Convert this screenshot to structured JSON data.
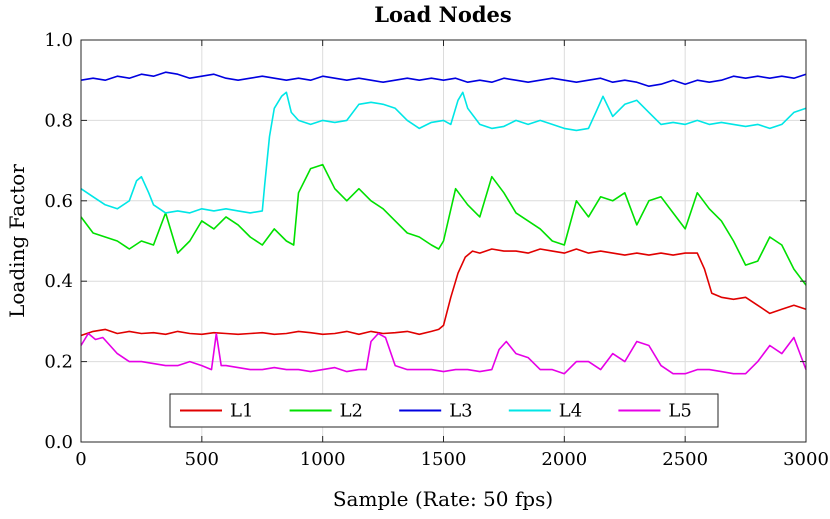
{
  "chart_data": {
    "type": "line",
    "title": "Load Nodes",
    "xlabel": "Sample (Rate:  50 fps)",
    "ylabel": "Loading Factor",
    "xlim": [
      0,
      3000
    ],
    "ylim": [
      0,
      1
    ],
    "xticks": [
      0,
      500,
      1000,
      1500,
      2000,
      2500,
      3000
    ],
    "xtick_labels": [
      "0",
      "500",
      "1000",
      "1500",
      "2000",
      "2500",
      "3000"
    ],
    "yticks": [
      0,
      0.2,
      0.4,
      0.6,
      0.8,
      1.0
    ],
    "ytick_labels": [
      "0.0",
      "0.2",
      "0.4",
      "0.6",
      "0.8",
      "1.0"
    ],
    "grid": true,
    "legend": {
      "placement": "bottom-center",
      "orientation": "horizontal"
    },
    "series": [
      {
        "name": "L1",
        "color": "#e00000",
        "x": [
          0,
          50,
          100,
          150,
          200,
          250,
          300,
          350,
          400,
          450,
          500,
          550,
          600,
          650,
          700,
          750,
          800,
          850,
          900,
          950,
          1000,
          1050,
          1100,
          1150,
          1200,
          1250,
          1300,
          1350,
          1400,
          1450,
          1480,
          1500,
          1530,
          1560,
          1590,
          1620,
          1650,
          1700,
          1750,
          1800,
          1850,
          1900,
          1950,
          2000,
          2050,
          2100,
          2150,
          2200,
          2250,
          2300,
          2350,
          2400,
          2450,
          2500,
          2550,
          2580,
          2610,
          2650,
          2700,
          2750,
          2800,
          2850,
          2900,
          2950,
          3000
        ],
        "y": [
          0.265,
          0.275,
          0.28,
          0.27,
          0.275,
          0.27,
          0.272,
          0.268,
          0.275,
          0.27,
          0.268,
          0.272,
          0.27,
          0.268,
          0.27,
          0.272,
          0.268,
          0.27,
          0.275,
          0.272,
          0.268,
          0.27,
          0.275,
          0.268,
          0.275,
          0.27,
          0.272,
          0.275,
          0.268,
          0.275,
          0.28,
          0.29,
          0.36,
          0.42,
          0.46,
          0.475,
          0.47,
          0.48,
          0.475,
          0.475,
          0.47,
          0.48,
          0.475,
          0.47,
          0.48,
          0.47,
          0.475,
          0.47,
          0.465,
          0.47,
          0.465,
          0.47,
          0.465,
          0.47,
          0.47,
          0.43,
          0.37,
          0.36,
          0.355,
          0.36,
          0.34,
          0.32,
          0.33,
          0.34,
          0.33
        ]
      },
      {
        "name": "L2",
        "color": "#00e000",
        "x": [
          0,
          50,
          100,
          150,
          200,
          250,
          300,
          350,
          400,
          450,
          500,
          550,
          600,
          650,
          700,
          750,
          800,
          850,
          880,
          900,
          950,
          1000,
          1050,
          1100,
          1150,
          1200,
          1250,
          1300,
          1350,
          1400,
          1450,
          1480,
          1500,
          1550,
          1600,
          1650,
          1700,
          1750,
          1800,
          1850,
          1900,
          1950,
          2000,
          2050,
          2100,
          2150,
          2200,
          2250,
          2300,
          2350,
          2400,
          2450,
          2500,
          2550,
          2600,
          2650,
          2700,
          2750,
          2800,
          2850,
          2900,
          2950,
          3000
        ],
        "y": [
          0.56,
          0.52,
          0.51,
          0.5,
          0.48,
          0.5,
          0.49,
          0.57,
          0.47,
          0.5,
          0.55,
          0.53,
          0.56,
          0.54,
          0.51,
          0.49,
          0.53,
          0.5,
          0.49,
          0.62,
          0.68,
          0.69,
          0.63,
          0.6,
          0.63,
          0.6,
          0.58,
          0.55,
          0.52,
          0.51,
          0.49,
          0.48,
          0.5,
          0.63,
          0.59,
          0.56,
          0.66,
          0.62,
          0.57,
          0.55,
          0.53,
          0.5,
          0.49,
          0.6,
          0.56,
          0.61,
          0.6,
          0.62,
          0.54,
          0.6,
          0.61,
          0.57,
          0.53,
          0.62,
          0.58,
          0.55,
          0.5,
          0.44,
          0.45,
          0.51,
          0.49,
          0.43,
          0.39
        ]
      },
      {
        "name": "L3",
        "color": "#0000e0",
        "x": [
          0,
          50,
          100,
          150,
          200,
          250,
          300,
          350,
          400,
          450,
          500,
          550,
          600,
          650,
          700,
          750,
          800,
          850,
          900,
          950,
          1000,
          1050,
          1100,
          1150,
          1200,
          1250,
          1300,
          1350,
          1400,
          1450,
          1500,
          1550,
          1600,
          1650,
          1700,
          1750,
          1800,
          1850,
          1900,
          1950,
          2000,
          2050,
          2100,
          2150,
          2200,
          2250,
          2300,
          2350,
          2400,
          2450,
          2500,
          2550,
          2600,
          2650,
          2700,
          2750,
          2800,
          2850,
          2900,
          2950,
          3000
        ],
        "y": [
          0.9,
          0.905,
          0.9,
          0.91,
          0.905,
          0.915,
          0.91,
          0.92,
          0.915,
          0.905,
          0.91,
          0.915,
          0.905,
          0.9,
          0.905,
          0.91,
          0.905,
          0.9,
          0.905,
          0.9,
          0.91,
          0.905,
          0.9,
          0.905,
          0.9,
          0.895,
          0.9,
          0.905,
          0.9,
          0.905,
          0.9,
          0.905,
          0.895,
          0.9,
          0.895,
          0.905,
          0.9,
          0.895,
          0.9,
          0.905,
          0.9,
          0.895,
          0.9,
          0.905,
          0.895,
          0.9,
          0.895,
          0.885,
          0.89,
          0.9,
          0.89,
          0.9,
          0.895,
          0.9,
          0.91,
          0.905,
          0.91,
          0.905,
          0.91,
          0.905,
          0.915
        ]
      },
      {
        "name": "L4",
        "color": "#00e6e6",
        "x": [
          0,
          50,
          100,
          150,
          200,
          230,
          250,
          280,
          300,
          350,
          400,
          450,
          500,
          550,
          600,
          650,
          700,
          750,
          760,
          780,
          800,
          830,
          850,
          870,
          900,
          950,
          1000,
          1050,
          1100,
          1150,
          1200,
          1250,
          1300,
          1350,
          1400,
          1450,
          1500,
          1530,
          1560,
          1580,
          1600,
          1650,
          1700,
          1750,
          1800,
          1850,
          1900,
          1950,
          2000,
          2050,
          2100,
          2130,
          2160,
          2200,
          2250,
          2300,
          2350,
          2400,
          2450,
          2500,
          2550,
          2600,
          2650,
          2700,
          2750,
          2800,
          2850,
          2900,
          2950,
          3000
        ],
        "y": [
          0.63,
          0.61,
          0.59,
          0.58,
          0.6,
          0.65,
          0.66,
          0.62,
          0.59,
          0.57,
          0.575,
          0.57,
          0.58,
          0.575,
          0.58,
          0.575,
          0.57,
          0.575,
          0.64,
          0.76,
          0.83,
          0.86,
          0.87,
          0.82,
          0.8,
          0.79,
          0.8,
          0.795,
          0.8,
          0.84,
          0.845,
          0.84,
          0.83,
          0.8,
          0.78,
          0.795,
          0.8,
          0.79,
          0.85,
          0.87,
          0.83,
          0.79,
          0.78,
          0.785,
          0.8,
          0.79,
          0.8,
          0.79,
          0.78,
          0.775,
          0.78,
          0.82,
          0.86,
          0.81,
          0.84,
          0.85,
          0.82,
          0.79,
          0.795,
          0.79,
          0.8,
          0.79,
          0.795,
          0.79,
          0.785,
          0.79,
          0.78,
          0.79,
          0.82,
          0.83
        ]
      },
      {
        "name": "L5",
        "color": "#e600e6",
        "x": [
          0,
          30,
          60,
          90,
          120,
          150,
          200,
          250,
          300,
          350,
          400,
          450,
          500,
          540,
          560,
          580,
          600,
          650,
          700,
          750,
          800,
          850,
          900,
          950,
          1000,
          1050,
          1100,
          1150,
          1180,
          1200,
          1230,
          1260,
          1300,
          1350,
          1400,
          1450,
          1500,
          1550,
          1600,
          1650,
          1700,
          1730,
          1760,
          1800,
          1850,
          1900,
          1950,
          2000,
          2050,
          2100,
          2150,
          2200,
          2250,
          2300,
          2350,
          2400,
          2450,
          2500,
          2550,
          2600,
          2650,
          2700,
          2750,
          2800,
          2850,
          2900,
          2950,
          3000
        ],
        "y": [
          0.24,
          0.27,
          0.255,
          0.26,
          0.24,
          0.22,
          0.2,
          0.2,
          0.195,
          0.19,
          0.19,
          0.2,
          0.19,
          0.18,
          0.27,
          0.19,
          0.19,
          0.185,
          0.18,
          0.18,
          0.185,
          0.18,
          0.18,
          0.175,
          0.18,
          0.185,
          0.175,
          0.18,
          0.18,
          0.25,
          0.27,
          0.26,
          0.19,
          0.18,
          0.18,
          0.18,
          0.175,
          0.18,
          0.18,
          0.175,
          0.18,
          0.23,
          0.25,
          0.22,
          0.21,
          0.18,
          0.18,
          0.17,
          0.2,
          0.2,
          0.18,
          0.22,
          0.2,
          0.25,
          0.24,
          0.19,
          0.17,
          0.17,
          0.18,
          0.18,
          0.175,
          0.17,
          0.17,
          0.2,
          0.24,
          0.22,
          0.26,
          0.18
        ]
      }
    ]
  }
}
